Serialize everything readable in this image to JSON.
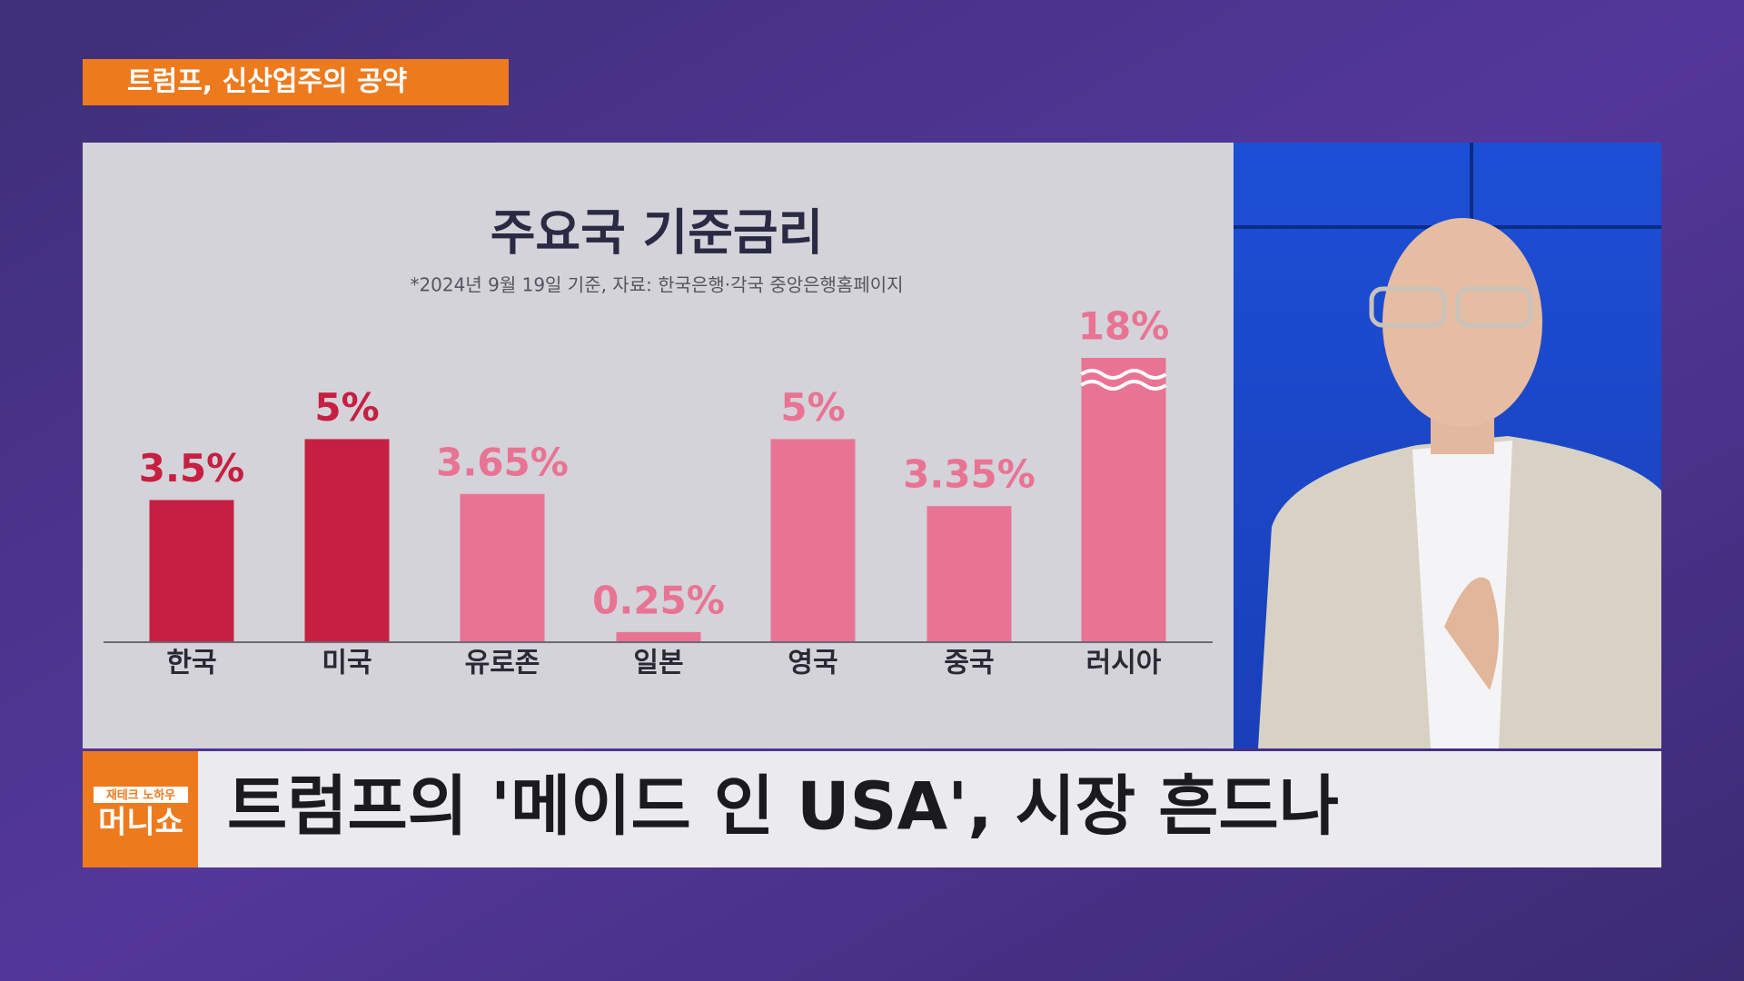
{
  "tag": "트럼프, 신산업주의 공약",
  "headline": "트럼프의 '메이드 인 USA', 시장 흔드나",
  "logo": {
    "top": "재테크 노하우",
    "main": "머니쇼"
  },
  "chart_data": {
    "type": "bar",
    "title": "주요국 기준금리",
    "subtitle": "*2024년 9월 19일 기준, 자료: 한국은행·각국 중앙은행홈페이지",
    "categories": [
      "한국",
      "미국",
      "유로존",
      "일본",
      "영국",
      "중국",
      "러시아"
    ],
    "values": [
      3.5,
      5,
      3.65,
      0.25,
      5,
      3.35,
      18
    ],
    "value_labels": [
      "3.5%",
      "5%",
      "3.65%",
      "0.25%",
      "5%",
      "3.35%",
      "18%"
    ],
    "colors": [
      "#c61f42",
      "#c61f42",
      "#e97393",
      "#e97393",
      "#e97393",
      "#e97393",
      "#e97393"
    ],
    "ylim": [
      0,
      7
    ]
  }
}
